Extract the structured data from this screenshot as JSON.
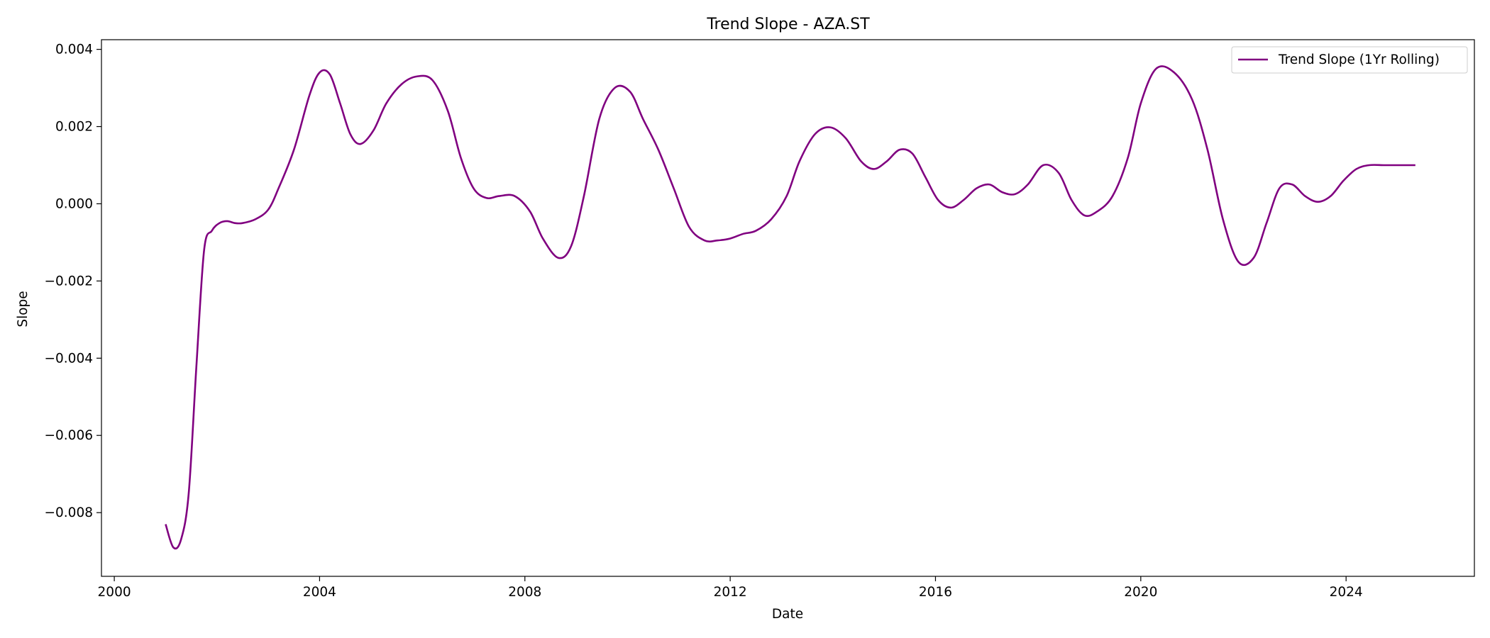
{
  "chart_data": {
    "type": "line",
    "title": "Trend Slope - AZA.ST",
    "xlabel": "Date",
    "ylabel": "Slope",
    "xlim": [
      1999.75,
      2026.5
    ],
    "ylim": [
      -0.00965,
      0.00425
    ],
    "x_ticks": [
      2000,
      2004,
      2008,
      2012,
      2016,
      2020,
      2024
    ],
    "x_tick_labels": [
      "2000",
      "2004",
      "2008",
      "2012",
      "2016",
      "2020",
      "2024"
    ],
    "y_ticks": [
      0.004,
      0.002,
      0.0,
      -0.002,
      -0.004,
      -0.006,
      -0.008
    ],
    "y_tick_labels": [
      "0.004",
      "0.002",
      "0.000",
      "−0.002",
      "−0.004",
      "−0.006",
      "−0.008"
    ],
    "grid": false,
    "legend_position": "top-right",
    "series": [
      {
        "name": "Trend Slope (1Yr Rolling)",
        "color": "#800080",
        "x": [
          2001.0,
          2001.15,
          2001.3,
          2001.45,
          2001.6,
          2001.75,
          2001.9,
          2002.05,
          2002.2,
          2002.35,
          2002.5,
          2002.75,
          2003.0,
          2003.2,
          2003.5,
          2003.8,
          2004.0,
          2004.2,
          2004.4,
          2004.6,
          2004.8,
          2005.05,
          2005.3,
          2005.6,
          2005.9,
          2006.2,
          2006.5,
          2006.75,
          2007.0,
          2007.25,
          2007.5,
          2007.8,
          2008.1,
          2008.35,
          2008.65,
          2008.9,
          2009.15,
          2009.45,
          2009.75,
          2010.05,
          2010.3,
          2010.6,
          2010.9,
          2011.2,
          2011.5,
          2011.75,
          2012.0,
          2012.25,
          2012.5,
          2012.8,
          2013.1,
          2013.35,
          2013.65,
          2013.95,
          2014.25,
          2014.55,
          2014.8,
          2015.05,
          2015.3,
          2015.55,
          2015.8,
          2016.05,
          2016.3,
          2016.55,
          2016.8,
          2017.05,
          2017.3,
          2017.55,
          2017.8,
          2018.1,
          2018.4,
          2018.65,
          2018.9,
          2019.15,
          2019.45,
          2019.75,
          2020.0,
          2020.3,
          2020.65,
          2021.0,
          2021.3,
          2021.6,
          2021.9,
          2022.2,
          2022.45,
          2022.7,
          2022.95,
          2023.2,
          2023.45,
          2023.7,
          2023.95,
          2024.2,
          2024.45,
          2024.75,
          2025.05,
          2025.35
        ],
        "y": [
          -0.0083,
          -0.0089,
          -0.0087,
          -0.0075,
          -0.0042,
          -0.0012,
          -0.0007,
          -0.0005,
          -0.00045,
          -0.0005,
          -0.0005,
          -0.0004,
          -0.00015,
          0.0004,
          0.0014,
          0.0028,
          0.0034,
          0.00335,
          0.0026,
          0.0018,
          0.00155,
          0.0019,
          0.0026,
          0.0031,
          0.0033,
          0.0032,
          0.0024,
          0.0012,
          0.0004,
          0.00015,
          0.0002,
          0.0002,
          -0.0002,
          -0.0009,
          -0.0014,
          -0.0011,
          0.0002,
          0.0022,
          0.003,
          0.0029,
          0.0022,
          0.0014,
          0.0004,
          -0.0006,
          -0.00095,
          -0.00095,
          -0.0009,
          -0.00078,
          -0.0007,
          -0.0004,
          0.0002,
          0.0011,
          0.0018,
          0.00198,
          0.0017,
          0.0011,
          0.0009,
          0.0011,
          0.0014,
          0.0013,
          0.0007,
          0.0001,
          -0.0001,
          0.0001,
          0.0004,
          0.0005,
          0.0003,
          0.00025,
          0.0005,
          0.001,
          0.0008,
          0.0001,
          -0.0003,
          -0.0002,
          0.0002,
          0.0012,
          0.0026,
          0.0035,
          0.0034,
          0.0027,
          0.0014,
          -0.0004,
          -0.0015,
          -0.0014,
          -0.0005,
          0.0004,
          0.0005,
          0.0002,
          5e-05,
          0.0002,
          0.0006,
          0.0009,
          0.001,
          0.001,
          0.001,
          0.001
        ]
      }
    ]
  }
}
